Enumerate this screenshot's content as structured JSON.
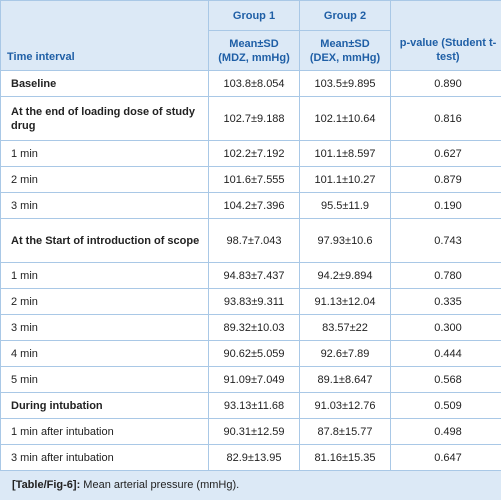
{
  "header": {
    "group1": "Group 1",
    "group2": "Group 2",
    "time_interval": "Time interval",
    "col2": "Mean±SD (MDZ, mmHg)",
    "col3": "Mean±SD (DEX, mmHg)",
    "col4": "p-value (Student t-test)"
  },
  "table": {
    "rows": [
      {
        "cells": [
          "Baseline",
          "103.8±8.054",
          "103.5±9.895",
          "0.890"
        ],
        "emphasis": true
      },
      {
        "cells": [
          "At the end of loading dose of study drug",
          "102.7±9.188",
          "102.1±10.64",
          "0.816"
        ],
        "emphasis": true
      },
      {
        "cells": [
          "1 min",
          "102.2±7.192",
          "101.1±8.597",
          "0.627"
        ],
        "emphasis": false
      },
      {
        "cells": [
          "2 min",
          "101.6±7.555",
          "101.1±10.27",
          "0.879"
        ],
        "emphasis": false
      },
      {
        "cells": [
          "3 min",
          "104.2±7.396",
          "95.5±11.9",
          "0.190"
        ],
        "emphasis": false
      },
      {
        "cells": [
          "At the Start of introduction of scope",
          "98.7±7.043",
          "97.93±10.6",
          "0.743"
        ],
        "emphasis": true
      },
      {
        "cells": [
          "1 min",
          "94.83±7.437",
          "94.2±9.894",
          "0.780"
        ],
        "emphasis": false
      },
      {
        "cells": [
          "2 min",
          "93.83±9.311",
          "91.13±12.04",
          "0.335"
        ],
        "emphasis": false
      },
      {
        "cells": [
          "3 min",
          "89.32±10.03",
          "83.57±22",
          "0.300"
        ],
        "emphasis": false
      },
      {
        "cells": [
          "4 min",
          "90.62±5.059",
          "92.6±7.89",
          "0.444"
        ],
        "emphasis": false
      },
      {
        "cells": [
          "5 min",
          "91.09±7.049",
          "89.1±8.647",
          "0.568"
        ],
        "emphasis": false
      },
      {
        "cells": [
          "During intubation",
          "93.13±11.68",
          "91.03±12.76",
          "0.509"
        ],
        "emphasis": true
      },
      {
        "cells": [
          "1 min after intubation",
          "90.31±12.59",
          "87.8±15.77",
          "0.498"
        ],
        "emphasis": false
      },
      {
        "cells": [
          "3 min after intubation",
          "82.9±13.95",
          "81.16±15.35",
          "0.647"
        ],
        "emphasis": false
      }
    ]
  },
  "caption": {
    "tag": "[Table/Fig-6]:",
    "text": "Mean arterial pressure (mmHg)."
  }
}
